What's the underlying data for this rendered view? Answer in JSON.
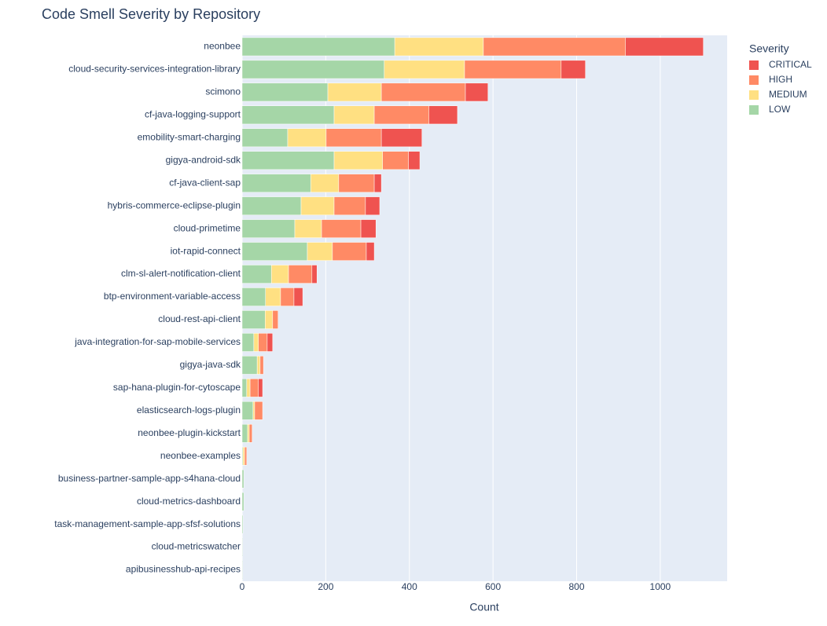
{
  "chart_data": {
    "type": "stacked-hbar",
    "title": "Code Smell Severity by Repository",
    "x_label": "Count",
    "legend_title": "Severity",
    "categories": [
      "neonbee",
      "cloud-security-services-integration-library",
      "scimono",
      "cf-java-logging-support",
      "emobility-smart-charging",
      "gigya-android-sdk",
      "cf-java-client-sap",
      "hybris-commerce-eclipse-plugin",
      "cloud-primetime",
      "iot-rapid-connect",
      "clm-sl-alert-notification-client",
      "btp-environment-variable-access",
      "cloud-rest-api-client",
      "java-integration-for-sap-mobile-services",
      "gigya-java-sdk",
      "sap-hana-plugin-for-cytoscape",
      "elasticsearch-logs-plugin",
      "neonbee-plugin-kickstart",
      "neonbee-examples",
      "business-partner-sample-app-s4hana-cloud",
      "cloud-metrics-dashboard",
      "task-management-sample-app-sfsf-solutions",
      "cloud-metricswatcher",
      "apibusinesshub-api-recipes"
    ],
    "series": [
      {
        "name": "LOW",
        "color": "#a5d6a7",
        "values": [
          365,
          340,
          205,
          220,
          109,
          220,
          164,
          141,
          126,
          156,
          70,
          56,
          55,
          28,
          36,
          11,
          26,
          13,
          2,
          4,
          4,
          2,
          1,
          1
        ]
      },
      {
        "name": "MEDIUM",
        "color": "#ffe082",
        "values": [
          212,
          192,
          128,
          96,
          92,
          116,
          67,
          79,
          64,
          60,
          41,
          36,
          18,
          11,
          7,
          8,
          4,
          4,
          4,
          0,
          0,
          0,
          0,
          0
        ]
      },
      {
        "name": "HIGH",
        "color": "#ff8a65",
        "values": [
          340,
          231,
          201,
          131,
          132,
          62,
          85,
          75,
          94,
          81,
          56,
          32,
          13,
          21,
          8,
          20,
          19,
          7,
          5,
          0,
          0,
          0,
          0,
          0
        ]
      },
      {
        "name": "CRITICAL",
        "color": "#ef5350",
        "values": [
          186,
          58,
          54,
          68,
          97,
          27,
          17,
          34,
          36,
          19,
          12,
          21,
          0,
          13,
          0,
          10,
          0,
          0,
          0,
          0,
          0,
          0,
          0,
          0
        ]
      }
    ],
    "xlim": [
      0,
      1160
    ],
    "xticks": [
      0,
      200,
      400,
      600,
      800,
      1000
    ],
    "grid": true
  }
}
